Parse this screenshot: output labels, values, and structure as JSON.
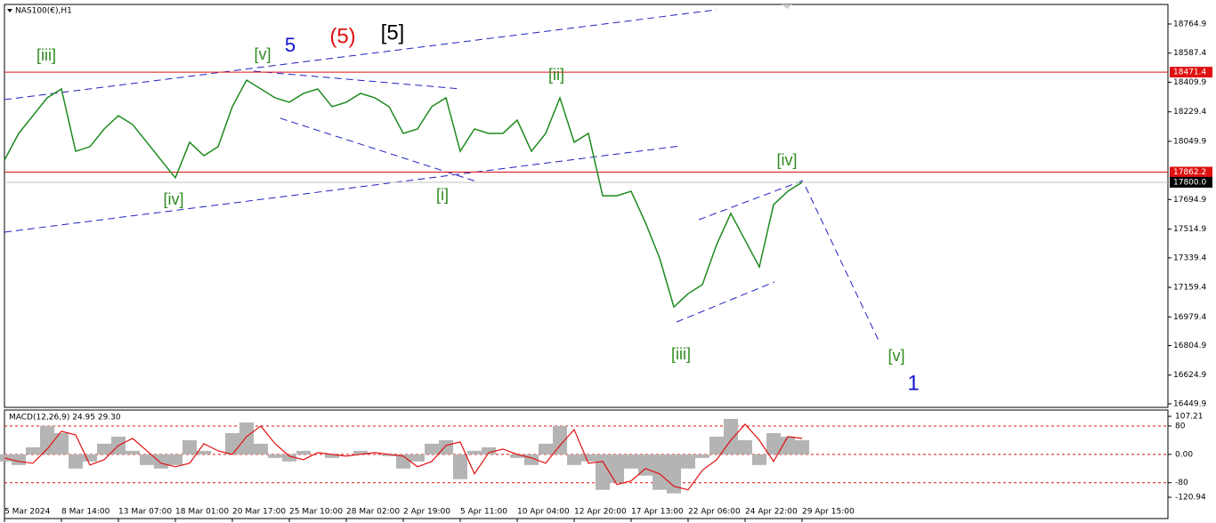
{
  "chart_data": {
    "type": "line",
    "title": "NAS100(€),H1",
    "categories": [
      "5 Mar 2024",
      null,
      null,
      null,
      "8 Mar 14:00",
      null,
      null,
      null,
      "13 Mar 07:00",
      null,
      null,
      null,
      "18 Mar 01:00",
      null,
      null,
      null,
      "20 Mar 17:00",
      null,
      null,
      null,
      "25 Mar 10:00",
      null,
      null,
      null,
      "28 Mar 02:00",
      null,
      null,
      null,
      "2 Apr 19:00",
      null,
      null,
      null,
      "5 Apr 11:00",
      null,
      null,
      null,
      "10 Apr 04:00",
      null,
      null,
      null,
      "12 Apr 20:00",
      null,
      null,
      null,
      "17 Apr 13:00",
      null,
      null,
      null,
      "22 Apr 06:00",
      null,
      null,
      null,
      "24 Apr 22:00",
      null,
      null,
      null,
      "29 Apr 15:00"
    ],
    "values": [
      17935,
      18098,
      18206,
      18315,
      18369,
      17989,
      18017,
      18125,
      18206,
      18152,
      18044,
      17935,
      17827,
      18044,
      17962,
      18017,
      18261,
      18423,
      18369,
      18315,
      18288,
      18342,
      18369,
      18261,
      18288,
      18342,
      18315,
      18261,
      18098,
      18125,
      18261,
      18315,
      17989,
      18125,
      18098,
      18098,
      18179,
      17989,
      18098,
      18315,
      18044,
      18098,
      17718,
      17718,
      17745,
      17555,
      17338,
      17040,
      17121,
      17176,
      17420,
      17610,
      17447,
      17284,
      17664,
      17745,
      17800
    ],
    "color": "#1f8a1f",
    "ylim": [
      16428,
      18884
    ],
    "yticks": [
      18764.9,
      18587.4,
      18409.9,
      18229.4,
      18049.9,
      17694.9,
      17514.9,
      17339.4,
      17159.4,
      16979.4,
      16804.9,
      16624.9,
      16449.9
    ],
    "levels": [
      {
        "value": 18471.4,
        "color": "#e01010"
      },
      {
        "value": 17862.2,
        "color": "#e01010"
      },
      {
        "value": 17800,
        "label": "17800.0",
        "color": "#000000"
      }
    ],
    "annotations": [
      {
        "text": "[iii]",
        "color": "#2e8b1e"
      },
      {
        "text": "[v]",
        "color": "#2e8b1e"
      },
      {
        "text": "5",
        "color": "#1010d0"
      },
      {
        "text": "(5)",
        "color": "#e01010"
      },
      {
        "text": "[5]",
        "color": "#000000"
      },
      {
        "text": "[ii]",
        "color": "#2e8b1e"
      },
      {
        "text": "[iv]",
        "color": "#2e8b1e"
      },
      {
        "text": "[i]",
        "color": "#2e8b1e"
      },
      {
        "text": "[iv]",
        "color": "#2e8b1e"
      },
      {
        "text": "[iii]",
        "color": "#2e8b1e"
      },
      {
        "text": "[v]",
        "color": "#2e8b1e"
      },
      {
        "text": "1",
        "color": "#1010d0"
      }
    ],
    "macd": {
      "title": "MACD(12,26,9) 24.95 29.30",
      "ylim": [
        -181,
        125
      ],
      "yticks": [
        {
          "value": 107.21,
          "label": "107.21"
        },
        80,
        {
          "value": 0,
          "label": "0.00"
        },
        -80,
        {
          "value": -120.94,
          "label": "-120.94"
        }
      ],
      "grid": [
        80,
        0,
        -80
      ],
      "grid_color": "#e01010",
      "series": [
        {
          "color": "#b4b4b4",
          "values": [
            -20,
            -30,
            20,
            80,
            60,
            -40,
            -20,
            30,
            50,
            10,
            -30,
            -40,
            -30,
            40,
            10,
            0,
            60,
            90,
            30,
            -10,
            -20,
            10,
            0,
            -10,
            0,
            10,
            0,
            -5,
            -40,
            -20,
            30,
            40,
            -70,
            10,
            20,
            0,
            -10,
            -30,
            30,
            80,
            -30,
            -20,
            -100,
            -80,
            -40,
            -60,
            -100,
            -110,
            -40,
            -10,
            50,
            100,
            40,
            -30,
            60,
            50,
            40
          ]
        },
        {
          "color": "#e01010",
          "values": [
            -10,
            -20,
            -25,
            15,
            65,
            55,
            -30,
            -15,
            25,
            45,
            10,
            -25,
            -35,
            -25,
            30,
            10,
            0,
            50,
            80,
            30,
            -5,
            -15,
            5,
            0,
            -5,
            0,
            5,
            0,
            -5,
            -35,
            -20,
            25,
            35,
            -55,
            5,
            15,
            0,
            -10,
            -25,
            25,
            70,
            -25,
            -20,
            -85,
            -75,
            -40,
            -55,
            -90,
            -100,
            -45,
            -15,
            40,
            85,
            40,
            -20,
            50,
            45
          ]
        }
      ]
    }
  }
}
